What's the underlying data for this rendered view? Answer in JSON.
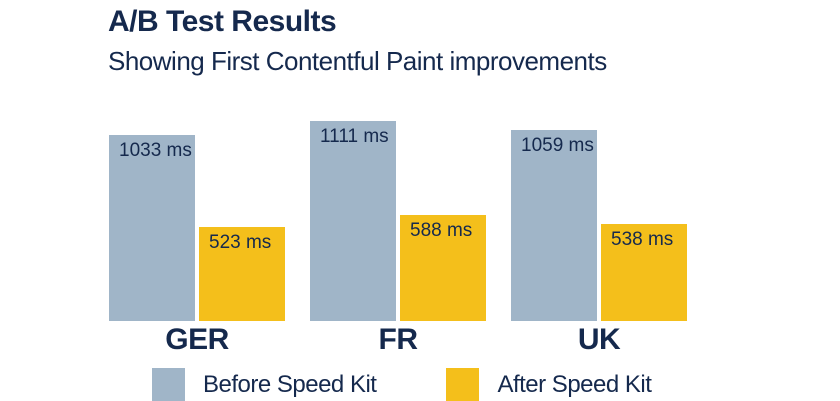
{
  "chart_data": {
    "type": "bar",
    "title": "A/B Test Results",
    "subtitle": "Showing First Contentful Paint improvements",
    "categories": [
      "GER",
      "FR",
      "UK"
    ],
    "series": [
      {
        "name": "Before Speed Kit",
        "color": "#A0B5C8",
        "values": [
          1033,
          1111,
          1059
        ],
        "labels": [
          "1033 ms",
          "1111 ms",
          "1059 ms"
        ]
      },
      {
        "name": "After Speed Kit",
        "color": "#F4BF1B",
        "values": [
          523,
          588,
          538
        ],
        "labels": [
          "523 ms",
          "588 ms",
          "538 ms"
        ]
      }
    ],
    "unit": "ms",
    "ylim": [
      0,
      1115
    ],
    "grid": false,
    "axes_shown": false,
    "value_labels": "inside-top",
    "legend_position": "bottom"
  },
  "colors": {
    "text": "#15294D",
    "background": "#FFFFFF",
    "before_bar": "#A0B5C8",
    "after_bar": "#F4BF1B"
  }
}
